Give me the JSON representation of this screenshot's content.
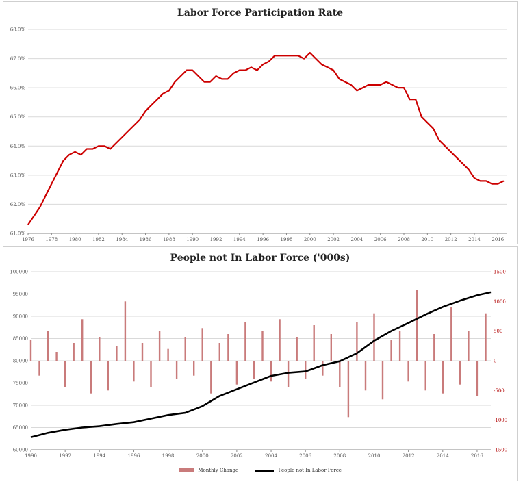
{
  "chart_data": [
    {
      "type": "line",
      "title": "Labor Force Participation Rate",
      "xlabel": "",
      "ylabel": "",
      "xlim": [
        1976,
        2016.8
      ],
      "ylim": [
        61.0,
        68.0
      ],
      "y_ticks": [
        "61.0%",
        "62.0%",
        "63.0%",
        "64.0%",
        "65.0%",
        "66.0%",
        "67.0%",
        "68.0%"
      ],
      "x_ticks": [
        "1976",
        "1978",
        "1980",
        "1982",
        "1984",
        "1986",
        "1988",
        "1990",
        "1992",
        "1994",
        "1996",
        "1998",
        "2000",
        "2002",
        "2004",
        "2006",
        "2008",
        "2010",
        "2012",
        "2014",
        "2016"
      ],
      "grid": true,
      "line_color": "#cc0000",
      "series": [
        {
          "x": [
            1976.0,
            1976.5,
            1977.0,
            1977.5,
            1978.0,
            1978.5,
            1979.0,
            1979.5,
            1980.0,
            1980.5,
            1981.0,
            1981.5,
            1982.0,
            1982.5,
            1983.0,
            1983.5,
            1984.0,
            1984.5,
            1985.0,
            1985.5,
            1986.0,
            1986.5,
            1987.0,
            1987.5,
            1988.0,
            1988.5,
            1989.0,
            1989.5,
            1990.0,
            1990.5,
            1991.0,
            1991.5,
            1992.0,
            1992.5,
            1993.0,
            1993.5,
            1994.0,
            1994.5,
            1995.0,
            1995.5,
            1996.0,
            1996.5,
            1997.0,
            1997.5,
            1998.0,
            1998.5,
            1999.0,
            1999.5,
            2000.0,
            2000.5,
            2001.0,
            2001.5,
            2002.0,
            2002.5,
            2003.0,
            2003.5,
            2004.0,
            2004.5,
            2005.0,
            2005.5,
            2006.0,
            2006.5,
            2007.0,
            2007.5,
            2008.0,
            2008.5,
            2009.0,
            2009.5,
            2010.0,
            2010.5,
            2011.0,
            2011.5,
            2012.0,
            2012.5,
            2013.0,
            2013.5,
            2014.0,
            2014.5,
            2015.0,
            2015.5,
            2016.0,
            2016.5
          ],
          "values": [
            61.3,
            61.6,
            61.9,
            62.3,
            62.7,
            63.1,
            63.5,
            63.7,
            63.8,
            63.7,
            63.9,
            63.9,
            64.0,
            64.0,
            63.9,
            64.1,
            64.3,
            64.5,
            64.7,
            64.9,
            65.2,
            65.4,
            65.6,
            65.8,
            65.9,
            66.2,
            66.4,
            66.6,
            66.6,
            66.4,
            66.2,
            66.2,
            66.4,
            66.3,
            66.3,
            66.5,
            66.6,
            66.6,
            66.7,
            66.6,
            66.8,
            66.9,
            67.1,
            67.1,
            67.1,
            67.1,
            67.1,
            67.0,
            67.2,
            67.0,
            66.8,
            66.7,
            66.6,
            66.3,
            66.2,
            66.1,
            65.9,
            66.0,
            66.1,
            66.1,
            66.1,
            66.2,
            66.1,
            66.0,
            66.0,
            65.6,
            65.6,
            65.0,
            64.8,
            64.6,
            64.2,
            64.0,
            63.8,
            63.6,
            63.4,
            63.2,
            62.9,
            62.8,
            62.8,
            62.7,
            62.7,
            62.8
          ]
        }
      ]
    },
    {
      "type": "bar+line",
      "title": "People not In Labor Force ('000s)",
      "xlabel": "",
      "xlim": [
        1990,
        2016.8
      ],
      "ylim_left": [
        60000,
        100000
      ],
      "ylim_right": [
        -1500,
        1500
      ],
      "y_ticks_left": [
        "60000",
        "65000",
        "70000",
        "75000",
        "80000",
        "85000",
        "90000",
        "95000",
        "100000"
      ],
      "y_ticks_right": [
        "-1500",
        "-1000",
        "-500",
        "0",
        "500",
        "1000",
        "1500"
      ],
      "x_ticks": [
        "1990",
        "1992",
        "1994",
        "1996",
        "1998",
        "2000",
        "2002",
        "2004",
        "2006",
        "2008",
        "2010",
        "2012",
        "2014",
        "2016"
      ],
      "grid": true,
      "legend_position": "bottom",
      "series": [
        {
          "name": "Monthly Change",
          "type": "bar",
          "axis": "right",
          "color": "#c97b7b",
          "x": [
            1990.0,
            1990.5,
            1991.0,
            1991.5,
            1992.0,
            1992.5,
            1993.0,
            1993.5,
            1994.0,
            1994.5,
            1995.0,
            1995.5,
            1996.0,
            1996.5,
            1997.0,
            1997.5,
            1998.0,
            1998.5,
            1999.0,
            1999.5,
            2000.0,
            2000.5,
            2001.0,
            2001.5,
            2002.0,
            2002.5,
            2003.0,
            2003.5,
            2004.0,
            2004.5,
            2005.0,
            2005.5,
            2006.0,
            2006.5,
            2007.0,
            2007.5,
            2008.0,
            2008.5,
            2009.0,
            2009.5,
            2010.0,
            2010.5,
            2011.0,
            2011.5,
            2012.0,
            2012.5,
            2013.0,
            2013.5,
            2014.0,
            2014.5,
            2015.0,
            2015.5,
            2016.0,
            2016.5
          ],
          "values": [
            350,
            -250,
            500,
            150,
            -450,
            300,
            700,
            -550,
            400,
            -500,
            250,
            1000,
            -350,
            300,
            -450,
            500,
            200,
            -300,
            400,
            -250,
            550,
            -550,
            300,
            450,
            -400,
            650,
            -300,
            500,
            -350,
            700,
            -450,
            400,
            -300,
            600,
            -250,
            450,
            -450,
            -950,
            650,
            -500,
            800,
            -650,
            350,
            500,
            -350,
            1200,
            -500,
            450,
            -550,
            900,
            -400,
            500,
            -600,
            800
          ]
        },
        {
          "name": "People not In Labor Force",
          "type": "line",
          "axis": "left",
          "color": "#000000",
          "x": [
            1990.0,
            1991.0,
            1992.0,
            1993.0,
            1994.0,
            1995.0,
            1996.0,
            1997.0,
            1998.0,
            1999.0,
            2000.0,
            2001.0,
            2002.0,
            2003.0,
            2004.0,
            2005.0,
            2006.0,
            2007.0,
            2008.0,
            2009.0,
            2010.0,
            2011.0,
            2012.0,
            2013.0,
            2014.0,
            2015.0,
            2016.0,
            2016.8
          ],
          "values": [
            62800,
            63800,
            64500,
            65000,
            65300,
            65800,
            66200,
            67000,
            67800,
            68300,
            69800,
            72100,
            73600,
            75100,
            76600,
            77300,
            77600,
            79000,
            79900,
            81700,
            84500,
            86700,
            88500,
            90400,
            92100,
            93500,
            94700,
            95400
          ]
        }
      ]
    }
  ]
}
